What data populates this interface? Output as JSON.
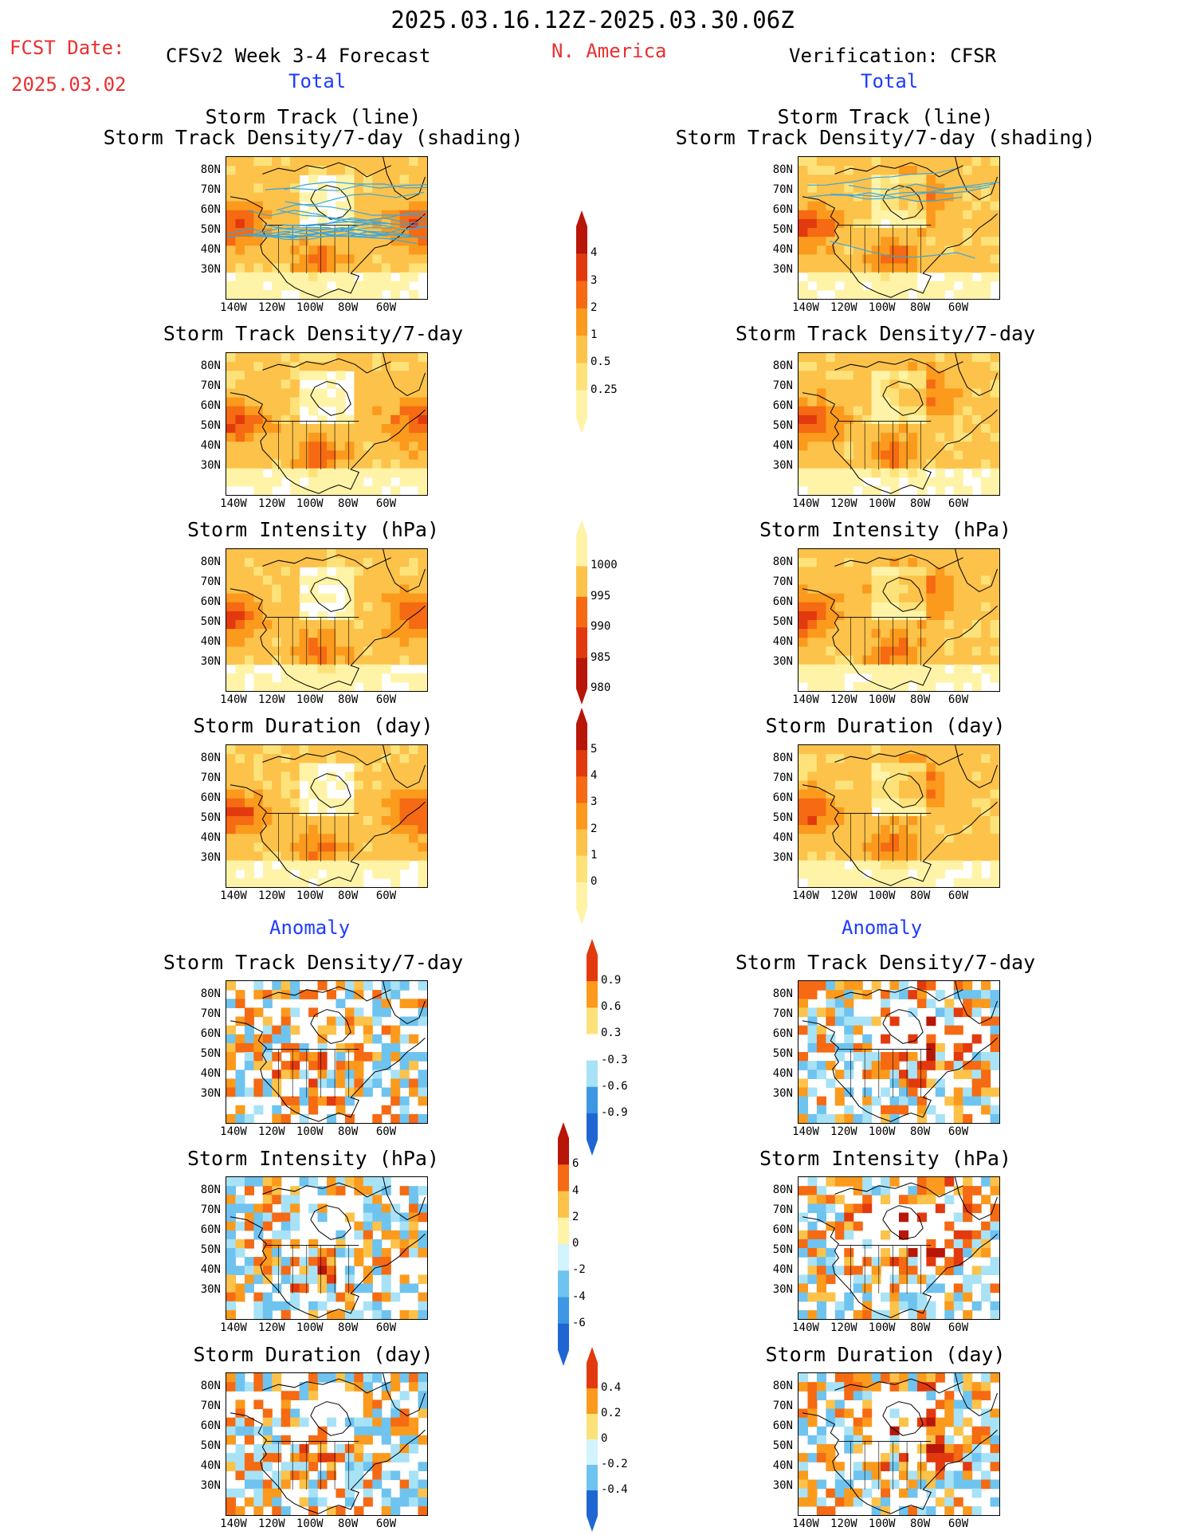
{
  "header": {
    "period": "2025.03.16.12Z-2025.03.30.06Z",
    "fcst_label": "FCST Date:",
    "fcst_date": "2025.03.02",
    "model_title": "CFSv2 Week 3-4 Forecast",
    "region": "N. America",
    "verification": "Verification: CFSR",
    "total_left": "Total",
    "total_right": "Total",
    "anomaly_left": "Anomaly",
    "anomaly_right": "Anomaly"
  },
  "panel_titles": {
    "track_line": "Storm Track (line)",
    "track_shading": "Storm Track Density/7-day (shading)",
    "density": "Storm Track Density/7-day",
    "intensity": "Storm Intensity (hPa)",
    "duration": "Storm Duration (day)"
  },
  "axis": {
    "lat_labels": [
      "80N",
      "70N",
      "60N",
      "50N",
      "40N",
      "30N"
    ],
    "lon_labels": [
      "140W",
      "120W",
      "100W",
      "80W",
      "60W"
    ]
  },
  "colorbars": {
    "density_total": [
      "4",
      "3",
      "2",
      "1",
      "0.5",
      "0.25"
    ],
    "intensity_total": [
      "1000",
      "995",
      "990",
      "985",
      "980"
    ],
    "duration_total": [
      "5",
      "4",
      "3",
      "2",
      "1",
      "0"
    ],
    "density_anom": [
      "0.9",
      "0.6",
      "0.3",
      "-0.3",
      "-0.6",
      "-0.9"
    ],
    "intensity_anom": [
      "6",
      "4",
      "2",
      "0",
      "-2",
      "-4",
      "-6"
    ],
    "duration_anom": [
      "0.4",
      "0.2",
      "0",
      "-0.2",
      "-0.4"
    ]
  },
  "colors": {
    "title_red": "#e8312f",
    "title_blue": "#1e3cff",
    "warm_scale": [
      "#fff3a8",
      "#fde27a",
      "#fcc24a",
      "#fb9a1c",
      "#f56a12",
      "#e23a0e",
      "#b81608"
    ],
    "cool_scale": [
      "#d2f4ff",
      "#a8e2f7",
      "#6fc3ef",
      "#3d97e4",
      "#1f66d3"
    ],
    "track_line": "#3ca6dc"
  }
}
